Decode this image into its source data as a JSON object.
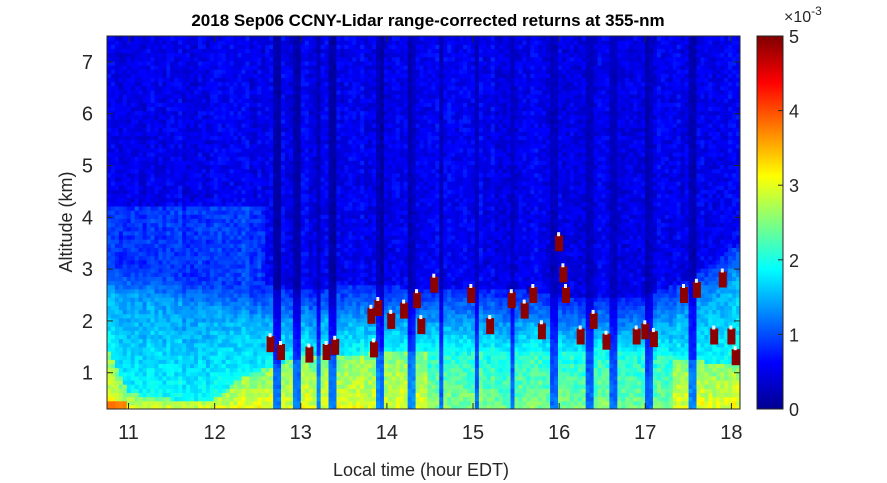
{
  "chart_data": {
    "type": "heatmap",
    "title": "2018 Sep06 CCNY-Lidar range-corrected returns at 355-nm",
    "xlabel": "Local time (hour EDT)",
    "ylabel": "Altitude (km)",
    "xlim": [
      10.75,
      18.1
    ],
    "ylim": [
      0.3,
      7.5
    ],
    "xticks": [
      11,
      12,
      13,
      14,
      15,
      16,
      17,
      18
    ],
    "yticks": [
      1,
      2,
      3,
      4,
      5,
      6,
      7
    ],
    "x_tick_labels": [
      "11",
      "12",
      "13",
      "14",
      "15",
      "16",
      "17",
      "18"
    ],
    "y_tick_labels": [
      "1",
      "2",
      "3",
      "4",
      "5",
      "6",
      "7"
    ],
    "colorbar": {
      "colormap": "jet",
      "clim": [
        0,
        5
      ],
      "ticks": [
        0,
        1,
        2,
        3,
        4,
        5
      ],
      "tick_labels": [
        "0",
        "1",
        "2",
        "3",
        "4",
        "5"
      ],
      "multiplier": "×10",
      "multiplier_exponent": "-3"
    },
    "features": {
      "boundary_layer_top_km": {
        "times": [
          10.75,
          11.5,
          12.0,
          12.5,
          13.0,
          13.5,
          14.0,
          14.5,
          15.0,
          15.5,
          16.0,
          16.5,
          17.0,
          17.5,
          18.0,
          18.1
        ],
        "heights": [
          2.6,
          2.4,
          2.2,
          2.1,
          2.0,
          2.1,
          2.1,
          2.0,
          2.0,
          2.0,
          1.9,
          1.9,
          1.9,
          2.2,
          2.8,
          2.9
        ]
      },
      "strong_return_layer_km": {
        "times": [
          10.75,
          11.0,
          11.5,
          12.0,
          12.3,
          12.6,
          13.0,
          14.0,
          14.45,
          15.0,
          16.0,
          17.0,
          17.3,
          17.8,
          18.1
        ],
        "heights": [
          1.5,
          0.6,
          0.5,
          0.5,
          0.9,
          1.1,
          1.3,
          1.4,
          1.4,
          1.4,
          1.4,
          1.4,
          1.3,
          1.2,
          1.2
        ]
      },
      "cloud_time_altitude_km": [
        [
          12.65,
          1.55
        ],
        [
          12.77,
          1.4
        ],
        [
          13.1,
          1.35
        ],
        [
          13.3,
          1.4
        ],
        [
          13.4,
          1.5
        ],
        [
          13.82,
          2.1
        ],
        [
          13.85,
          1.45
        ],
        [
          13.9,
          2.25
        ],
        [
          14.05,
          2.0
        ],
        [
          14.2,
          2.2
        ],
        [
          14.35,
          2.4
        ],
        [
          14.4,
          1.9
        ],
        [
          14.55,
          2.7
        ],
        [
          14.98,
          2.5
        ],
        [
          15.2,
          1.9
        ],
        [
          15.45,
          2.4
        ],
        [
          15.6,
          2.2
        ],
        [
          15.7,
          2.5
        ],
        [
          15.8,
          1.8
        ],
        [
          16.0,
          3.5
        ],
        [
          16.05,
          2.9
        ],
        [
          16.08,
          2.5
        ],
        [
          16.25,
          1.7
        ],
        [
          16.4,
          2.0
        ],
        [
          16.55,
          1.6
        ],
        [
          16.9,
          1.7
        ],
        [
          17.0,
          1.8
        ],
        [
          17.1,
          1.65
        ],
        [
          17.45,
          2.5
        ],
        [
          17.6,
          2.6
        ],
        [
          17.8,
          1.7
        ],
        [
          17.9,
          2.8
        ],
        [
          18.0,
          1.7
        ],
        [
          18.05,
          1.3
        ]
      ],
      "dark_columns_hours": [
        12.72,
        12.95,
        13.2,
        13.38,
        13.92,
        14.28,
        14.63,
        15.05,
        15.45,
        15.95,
        16.35,
        16.62,
        17.05,
        17.55
      ]
    }
  }
}
